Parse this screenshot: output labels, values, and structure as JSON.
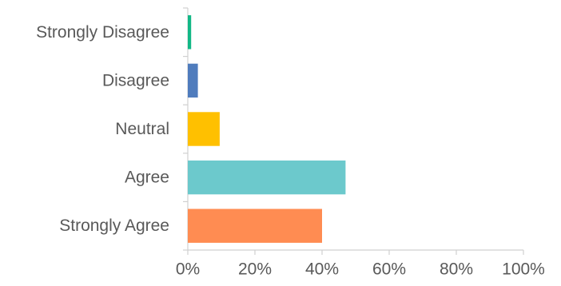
{
  "chart_data": {
    "type": "bar",
    "orientation": "horizontal",
    "title": "",
    "xlabel": "",
    "ylabel": "",
    "categories": [
      "Strongly Disagree",
      "Disagree",
      "Neutral",
      "Agree",
      "Strongly Agree"
    ],
    "values": [
      1,
      3,
      9.5,
      47,
      40
    ],
    "colors": [
      "#12B886",
      "#4F7CBD",
      "#FFC000",
      "#6CC9CC",
      "#FF8C52"
    ],
    "xlim": [
      0,
      100
    ],
    "x_ticks": [
      "0%",
      "20%",
      "40%",
      "60%",
      "80%",
      "100%"
    ],
    "grid": false,
    "legend": "none"
  }
}
